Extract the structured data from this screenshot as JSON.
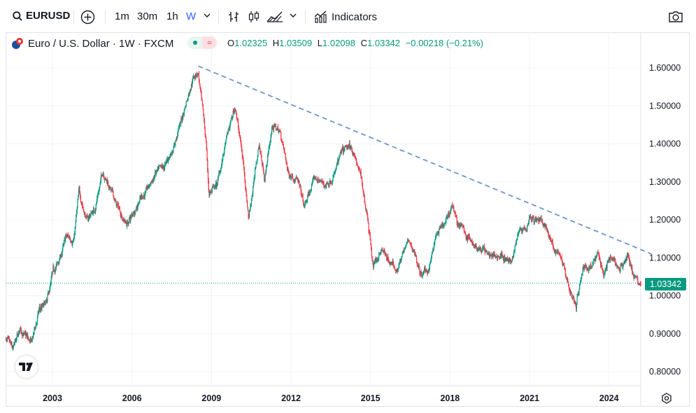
{
  "toolbar": {
    "symbol": "EURUSD",
    "add_icon": "plus-circle-icon",
    "intervals": [
      "1m",
      "30m",
      "1h",
      "W"
    ],
    "active_interval": "W",
    "indicators_label": "Indicators",
    "camera_icon": "camera-icon"
  },
  "legend": {
    "title": "Euro / U.S. Dollar · 1W · FXCM",
    "open_label": "O",
    "open": "1.02325",
    "high_label": "H",
    "high": "1.03509",
    "low_label": "L",
    "low": "1.02098",
    "close_label": "C",
    "close": "1.03342",
    "change": "−0.00218 (−0.21%)"
  },
  "colors": {
    "up": "#089981",
    "down": "#f23645",
    "trendline": "#6f93d1",
    "accent": "#2962ff"
  },
  "price_badge": "1.03342",
  "chart_data": {
    "type": "candlestick",
    "title": "Euro / U.S. Dollar · 1W · FXCM",
    "x_tick_labels": [
      "2003",
      "2006",
      "2009",
      "2012",
      "2015",
      "2018",
      "2021",
      "2024"
    ],
    "y_tick_labels": [
      "1.60000",
      "1.50000",
      "1.40000",
      "1.30000",
      "1.20000",
      "1.10000",
      "1.00000",
      "0.90000",
      "0.80000"
    ],
    "xlim": [
      2001.2,
      2025.6
    ],
    "ylim": [
      0.77,
      1.63
    ],
    "grid": true,
    "last_price": 1.03342,
    "path": [
      [
        2001.2,
        0.89
      ],
      [
        2001.5,
        0.85
      ],
      [
        2001.8,
        0.91
      ],
      [
        2002.2,
        0.87
      ],
      [
        2002.5,
        0.96
      ],
      [
        2002.8,
        0.98
      ],
      [
        2003.0,
        1.05
      ],
      [
        2003.3,
        1.1
      ],
      [
        2003.5,
        1.15
      ],
      [
        2003.8,
        1.15
      ],
      [
        2004.0,
        1.27
      ],
      [
        2004.3,
        1.2
      ],
      [
        2004.6,
        1.23
      ],
      [
        2004.9,
        1.33
      ],
      [
        2005.1,
        1.3
      ],
      [
        2005.4,
        1.24
      ],
      [
        2005.8,
        1.19
      ],
      [
        2006.0,
        1.21
      ],
      [
        2006.3,
        1.26
      ],
      [
        2006.6,
        1.28
      ],
      [
        2006.9,
        1.32
      ],
      [
        2007.2,
        1.33
      ],
      [
        2007.5,
        1.38
      ],
      [
        2007.9,
        1.47
      ],
      [
        2008.3,
        1.58
      ],
      [
        2008.5,
        1.59
      ],
      [
        2008.8,
        1.4
      ],
      [
        2008.9,
        1.27
      ],
      [
        2009.2,
        1.29
      ],
      [
        2009.6,
        1.42
      ],
      [
        2009.9,
        1.5
      ],
      [
        2010.2,
        1.35
      ],
      [
        2010.4,
        1.21
      ],
      [
        2010.8,
        1.4
      ],
      [
        2011.0,
        1.31
      ],
      [
        2011.3,
        1.45
      ],
      [
        2011.6,
        1.43
      ],
      [
        2011.9,
        1.32
      ],
      [
        2012.2,
        1.32
      ],
      [
        2012.5,
        1.23
      ],
      [
        2012.9,
        1.31
      ],
      [
        2013.3,
        1.29
      ],
      [
        2013.6,
        1.32
      ],
      [
        2013.9,
        1.37
      ],
      [
        2014.3,
        1.39
      ],
      [
        2014.6,
        1.32
      ],
      [
        2014.9,
        1.21
      ],
      [
        2015.1,
        1.08
      ],
      [
        2015.4,
        1.12
      ],
      [
        2015.7,
        1.09
      ],
      [
        2016.0,
        1.07
      ],
      [
        2016.4,
        1.14
      ],
      [
        2016.7,
        1.11
      ],
      [
        2016.9,
        1.05
      ],
      [
        2017.2,
        1.07
      ],
      [
        2017.5,
        1.16
      ],
      [
        2017.8,
        1.18
      ],
      [
        2018.1,
        1.24
      ],
      [
        2018.3,
        1.19
      ],
      [
        2018.6,
        1.16
      ],
      [
        2018.9,
        1.14
      ],
      [
        2019.3,
        1.12
      ],
      [
        2019.7,
        1.1
      ],
      [
        2020.0,
        1.11
      ],
      [
        2020.3,
        1.08
      ],
      [
        2020.6,
        1.18
      ],
      [
        2020.9,
        1.19
      ],
      [
        2021.0,
        1.22
      ],
      [
        2021.3,
        1.2
      ],
      [
        2021.6,
        1.18
      ],
      [
        2021.9,
        1.13
      ],
      [
        2022.2,
        1.1
      ],
      [
        2022.5,
        1.02
      ],
      [
        2022.75,
        0.97
      ],
      [
        2023.0,
        1.07
      ],
      [
        2023.4,
        1.09
      ],
      [
        2023.6,
        1.11
      ],
      [
        2023.8,
        1.06
      ],
      [
        2024.0,
        1.1
      ],
      [
        2024.4,
        1.07
      ],
      [
        2024.7,
        1.11
      ],
      [
        2024.9,
        1.06
      ],
      [
        2025.1,
        1.03
      ],
      [
        2025.2,
        1.033
      ]
    ],
    "trendline": {
      "from": [
        2008.5,
        1.605
      ],
      "to": [
        2025.6,
        1.11
      ]
    }
  }
}
